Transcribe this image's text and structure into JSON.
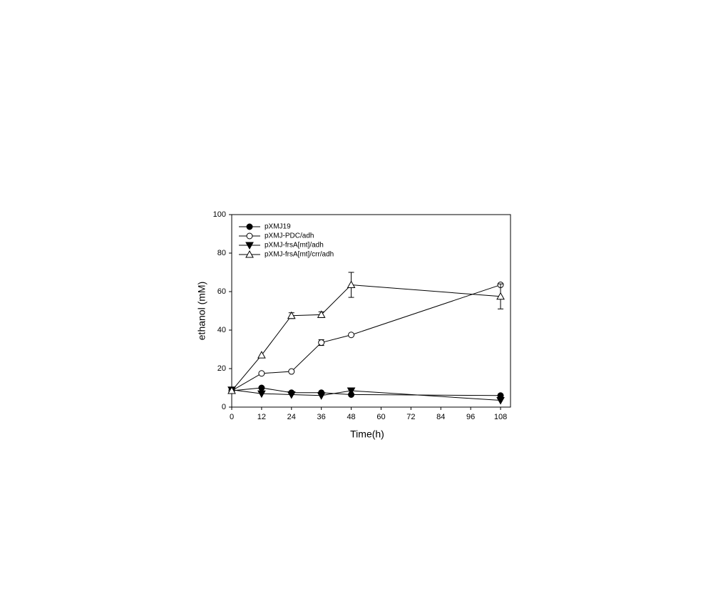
{
  "chart_data": {
    "type": "line",
    "x_label": "Time(h)",
    "y_label": "ethanol (mM)",
    "x": [
      0,
      12,
      24,
      36,
      48,
      108
    ],
    "xlim": [
      0,
      112
    ],
    "xticks": [
      0,
      12,
      24,
      36,
      48,
      60,
      72,
      84,
      96,
      108
    ],
    "ylim": [
      0,
      100
    ],
    "yticks": [
      0,
      20,
      40,
      60,
      80,
      100
    ],
    "legend": "upper left",
    "series": [
      {
        "name": "pXMJ19",
        "color": "#000000",
        "marker": "circle",
        "filled": true,
        "values": [
          8.5,
          10,
          7.5,
          7.5,
          6.5,
          6
        ]
      },
      {
        "name": "pXMJ-PDC/adh",
        "color": "#000000",
        "marker": "circle",
        "filled": false,
        "values": [
          8.5,
          17.5,
          18.5,
          33.5,
          37.5,
          63.5
        ],
        "errors": [
          null,
          null,
          null,
          1.5,
          null,
          null
        ]
      },
      {
        "name": "pXMJ-frsA[mt]/adh",
        "color": "#000000",
        "marker": "triangle-down",
        "filled": true,
        "values": [
          9,
          7,
          6.5,
          6,
          8.5,
          3.5
        ]
      },
      {
        "name": "pXMJ-frsA[mt]/crr/adh",
        "color": "#000000",
        "marker": "triangle-up",
        "filled": false,
        "values": [
          8.5,
          27,
          47.5,
          48,
          63.5,
          57.5
        ],
        "errors": [
          null,
          null,
          1.5,
          1.5,
          6.5,
          6.5
        ]
      }
    ]
  }
}
